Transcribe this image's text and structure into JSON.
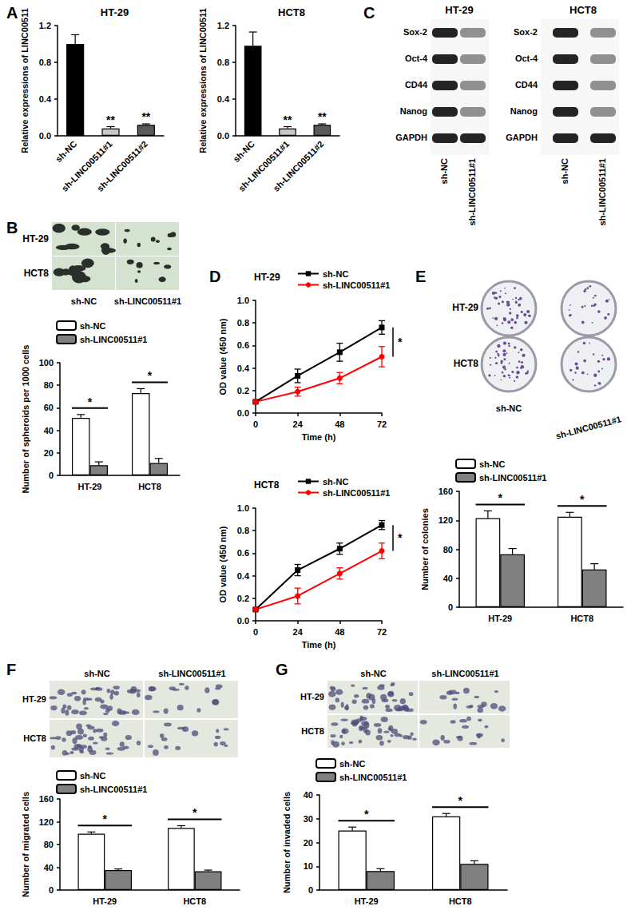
{
  "panel_labels": [
    "A",
    "B",
    "C",
    "D",
    "E",
    "F",
    "G"
  ],
  "images": {
    "B": {
      "rows": [
        "HT-29",
        "HCT8"
      ],
      "columns": [
        "sh-NC",
        "sh-LINC00511#1"
      ]
    },
    "C": [
      {
        "title": "HT-29",
        "rows": [
          "Sox-2",
          "Oct-4",
          "CD44",
          "Nanog",
          "GAPDH"
        ],
        "columns": [
          "sh-NC",
          "sh-LINC00511#1"
        ]
      },
      {
        "title": "HCT8",
        "rows": [
          "Sox-2",
          "Oct-4",
          "CD44",
          "Nanog",
          "GAPDH"
        ],
        "columns": [
          "sh-NC",
          "sh-LINC00511#1"
        ]
      }
    ],
    "E": {
      "rows": [
        "HT-29",
        "HCT8"
      ],
      "columns": [
        "sh-NC",
        "sh-LINC00511#1"
      ]
    },
    "F": {
      "rows": [
        "HT-29",
        "HCT8"
      ],
      "columns": [
        "sh-NC",
        "sh-LINC00511#1"
      ]
    },
    "G": {
      "rows": [
        "HT-29",
        "HCT8"
      ],
      "columns": [
        "sh-NC",
        "sh-LINC00511#1"
      ]
    }
  },
  "chart_data": [
    {
      "type": "bar",
      "title": "HT-29",
      "categories": [
        "sh-NC",
        "sh-LINC00511#1",
        "sh-LINC00511#2"
      ],
      "values": [
        1.0,
        0.08,
        0.12
      ],
      "errors": [
        0.1,
        0.02,
        0.01
      ],
      "colors": [
        "#000000",
        "#c8c8c8",
        "#595959"
      ],
      "significance": [
        null,
        "**",
        "**"
      ],
      "ylabel": "Relative expressions of LINC00511",
      "ylim": [
        0,
        1.2
      ],
      "yticks": [
        {
          "value": 0,
          "label": "0.0"
        },
        0.4,
        0.8,
        1.2
      ],
      "grid": false
    },
    {
      "type": "bar",
      "title": "HCT8",
      "categories": [
        "sh-NC",
        "sh-LINC00511#1",
        "sh-LINC00511#2"
      ],
      "values": [
        0.98,
        0.08,
        0.12
      ],
      "errors": [
        0.15,
        0.02,
        0.01
      ],
      "colors": [
        "#000000",
        "#c8c8c8",
        "#595959"
      ],
      "significance": [
        null,
        "**",
        "**"
      ],
      "ylabel": "Relative expressions of LINC00511",
      "ylim": [
        0,
        1.2
      ],
      "yticks": [
        {
          "value": 0,
          "label": "0.0"
        },
        0.4,
        0.8,
        1.2
      ],
      "grid": false
    },
    {
      "type": "bar",
      "categories": [
        "HT-29",
        "HCT8"
      ],
      "series": [
        {
          "name": "sh-NC",
          "color": "#ffffff",
          "values": [
            51,
            73
          ],
          "errors": [
            3,
            4
          ]
        },
        {
          "name": "sh-LINC00511#1",
          "color": "#808080",
          "values": [
            9,
            11
          ],
          "errors": [
            3,
            4
          ]
        }
      ],
      "significance": [
        "*",
        "*"
      ],
      "ylabel": "Number of spheroids per 1000 cells",
      "ylim": [
        0,
        100
      ],
      "yticks": [
        0,
        20,
        40,
        60,
        80,
        100
      ],
      "legend": "top-left",
      "grid": false
    },
    {
      "type": "line",
      "title": "HT-29",
      "x": [
        0,
        24,
        48,
        72
      ],
      "xlim": [
        0,
        72
      ],
      "xticks": [
        0,
        24,
        48,
        72
      ],
      "xlabel": "Time (h)",
      "ylabel": "OD value (450 nm)",
      "ylim": [
        0,
        1
      ],
      "yticks": [
        {
          "value": 0,
          "label": "0.0"
        },
        0.2,
        0.4,
        0.6,
        0.8,
        {
          "value": 1,
          "label": "1.0"
        }
      ],
      "series": [
        {
          "name": "sh-NC",
          "color": "#000000",
          "marker": "square",
          "values": [
            0.1,
            0.33,
            0.54,
            0.76
          ],
          "errors": [
            0.01,
            0.06,
            0.08,
            0.06
          ]
        },
        {
          "name": "sh-LINC00511#1",
          "color": "#ff0000",
          "marker": "circle",
          "values": [
            0.1,
            0.19,
            0.31,
            0.5
          ],
          "errors": [
            0.01,
            0.04,
            0.05,
            0.09
          ]
        }
      ],
      "significance": "*",
      "legend": "top",
      "grid": false
    },
    {
      "type": "line",
      "title": "HCT8",
      "x": [
        0,
        24,
        48,
        72
      ],
      "xlim": [
        0,
        72
      ],
      "xticks": [
        0,
        24,
        48,
        72
      ],
      "xlabel": "Time (h)",
      "ylabel": "OD value (450 nm)",
      "ylim": [
        0,
        1
      ],
      "yticks": [
        {
          "value": 0,
          "label": "0.0"
        },
        0.2,
        0.4,
        0.6,
        0.8,
        {
          "value": 1,
          "label": "1.0"
        }
      ],
      "series": [
        {
          "name": "sh-NC",
          "color": "#000000",
          "marker": "square",
          "values": [
            0.1,
            0.45,
            0.64,
            0.85
          ],
          "errors": [
            0.01,
            0.05,
            0.05,
            0.04
          ]
        },
        {
          "name": "sh-LINC00511#1",
          "color": "#ff0000",
          "marker": "circle",
          "values": [
            0.1,
            0.22,
            0.42,
            0.62
          ],
          "errors": [
            0.01,
            0.07,
            0.05,
            0.07
          ]
        }
      ],
      "significance": "*",
      "legend": "top",
      "grid": false
    },
    {
      "type": "bar",
      "categories": [
        "HT-29",
        "HCT8"
      ],
      "series": [
        {
          "name": "sh-NC",
          "color": "#ffffff",
          "values": [
            123,
            125
          ],
          "errors": [
            10,
            6
          ]
        },
        {
          "name": "sh-LINC00511#1",
          "color": "#808080",
          "values": [
            73,
            52
          ],
          "errors": [
            8,
            8
          ]
        }
      ],
      "significance": [
        "*",
        "*"
      ],
      "ylabel": "Number of colonies",
      "ylim": [
        0,
        160
      ],
      "yticks": [
        0,
        40,
        80,
        120,
        160
      ],
      "legend": "top-left",
      "grid": false
    },
    {
      "type": "bar",
      "categories": [
        "HT-29",
        "HCT8"
      ],
      "series": [
        {
          "name": "sh-NC",
          "color": "#ffffff",
          "values": [
            99,
            109
          ],
          "errors": [
            3,
            4
          ]
        },
        {
          "name": "sh-LINC00511#1",
          "color": "#808080",
          "values": [
            35,
            33
          ],
          "errors": [
            2,
            2
          ]
        }
      ],
      "significance": [
        "*",
        "*"
      ],
      "ylabel": "Number of migrated cells",
      "ylim": [
        0,
        160
      ],
      "yticks": [
        0,
        40,
        80,
        120,
        160
      ],
      "legend": "top-left",
      "grid": false
    },
    {
      "type": "bar",
      "categories": [
        "HT-29",
        "HCT8"
      ],
      "series": [
        {
          "name": "sh-NC",
          "color": "#ffffff",
          "values": [
            25,
            31
          ],
          "errors": [
            1.5,
            1.2
          ]
        },
        {
          "name": "sh-LINC00511#1",
          "color": "#808080",
          "values": [
            8,
            11
          ],
          "errors": [
            1,
            1.3
          ]
        }
      ],
      "significance": [
        "*",
        "*"
      ],
      "ylabel": "Number of invaded cells",
      "ylim": [
        0,
        40
      ],
      "yticks": [
        0,
        10,
        20,
        30,
        40
      ],
      "legend": "top-left",
      "grid": false
    }
  ]
}
